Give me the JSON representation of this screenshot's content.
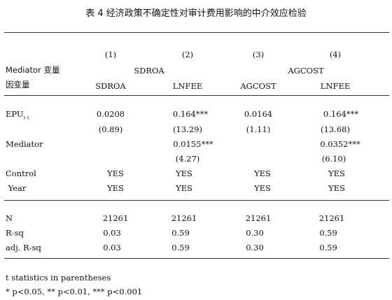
{
  "title": "表 4 经济政策不确定性对审计费用影响的中介效应检验",
  "columns": {
    "numbers": [
      "(1)",
      "(2)",
      "(3)",
      "(4)"
    ],
    "mediator_label": "Mediator 变量",
    "mediator_groups": [
      "SDROA",
      "AGCOST"
    ],
    "dep_label": "因变量",
    "dep_vars": [
      "SDROA",
      "LNFEE",
      "AGCOST",
      "LNFEE"
    ]
  },
  "rows": [
    {
      "label": "EPU",
      "sub": "t-1",
      "values": [
        "0.0208",
        "0.164***",
        "0.0164",
        "0.164***"
      ]
    },
    {
      "label": "",
      "values": [
        "(0.89)",
        "(13.29)",
        "(1.11)",
        "(13.68)"
      ]
    },
    {
      "label": "Mediator",
      "values": [
        "",
        "0.0155***",
        "",
        "0.0352***"
      ]
    },
    {
      "label": "",
      "values": [
        "",
        "(4.27)",
        "",
        "(6.10)"
      ]
    },
    {
      "label": "Control",
      "values": [
        "YES",
        "YES",
        "YES",
        "YES"
      ]
    },
    {
      "label": " Year",
      "values": [
        "YES",
        "YES",
        "YES",
        "YES"
      ]
    },
    {
      "label": "N",
      "values": [
        "21261",
        "21261",
        "21261",
        "21261"
      ]
    },
    {
      "label": "R-sq",
      "values": [
        "0.03",
        "0.59",
        "0.30",
        "0.59"
      ]
    },
    {
      "label": "adj. R-sq",
      "values": [
        "0.03",
        "0.59",
        "0.30",
        "0.59"
      ]
    }
  ],
  "notes": [
    "t statistics in parentheses",
    "* p<0.05, ** p<0.01, *** p<0.001"
  ]
}
